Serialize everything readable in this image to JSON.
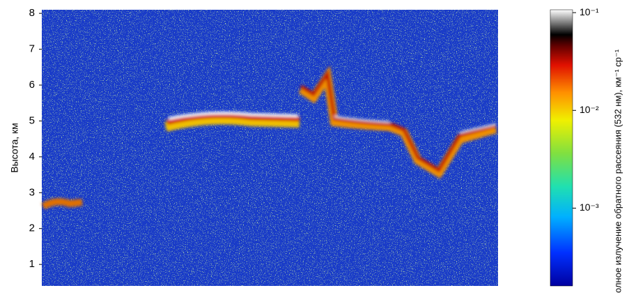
{
  "chart_data": {
    "type": "heatmap",
    "y_label": "Высота, км",
    "ylim": [
      0.4,
      8.1
    ],
    "yticks": [
      1,
      2,
      3,
      4,
      5,
      6,
      7,
      8
    ],
    "colorbar": {
      "log": true,
      "lim": [
        0.00016,
        0.107
      ],
      "ticks": [
        {
          "value": 0.1,
          "label": "10⁻¹"
        },
        {
          "value": 0.01,
          "label": "10⁻²"
        },
        {
          "value": 0.001,
          "label": "10⁻³"
        }
      ],
      "label": "олное излучение обратного рассеяния (532 нм), км⁻¹ ср⁻¹"
    }
  }
}
